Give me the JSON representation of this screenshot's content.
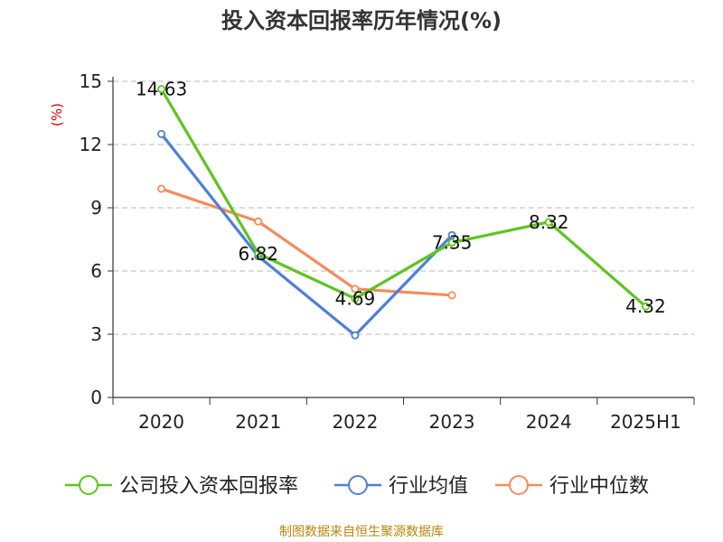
{
  "chart_data": {
    "type": "line",
    "title": "投入资本回报率历年情况(%)",
    "ylabel": "(%)",
    "categories": [
      "2020",
      "2021",
      "2022",
      "2023",
      "2024",
      "2025H1"
    ],
    "yticks": [
      "0",
      "3",
      "6",
      "9",
      "12",
      "15"
    ],
    "ylim": [
      0,
      15
    ],
    "grid": true,
    "legend_position": "bottom",
    "series": [
      {
        "name": "公司投入资本回报率",
        "color": "#5ec51e",
        "values": [
          14.63,
          6.82,
          4.69,
          7.35,
          8.32,
          4.32
        ],
        "labels": [
          "14.63",
          "6.82",
          "4.69",
          "7.35",
          "8.32",
          "4.32"
        ]
      },
      {
        "name": "行业均值",
        "color": "#4f7fd8",
        "values": [
          12.5,
          6.7,
          2.95,
          7.7,
          null,
          null
        ]
      },
      {
        "name": "行业中位数",
        "color": "#f58c5a",
        "values": [
          9.9,
          8.35,
          5.15,
          4.85,
          null,
          null
        ]
      }
    ],
    "source": "制图数据来自恒生聚源数据库"
  }
}
